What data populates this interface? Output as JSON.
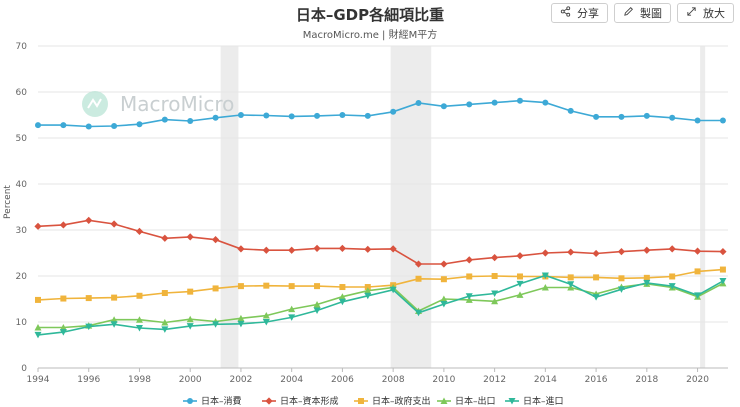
{
  "header": {
    "title": "日本–GDP各細項比重",
    "subtitle": "MacroMicro.me | 財經M平方"
  },
  "toolbar": {
    "share": {
      "label": "分享",
      "icon": "share-icon"
    },
    "draw": {
      "label": "製圖",
      "icon": "pencil-icon"
    },
    "zoom": {
      "label": "放大",
      "icon": "expand-icon"
    }
  },
  "watermark": {
    "text": "MacroMicro",
    "icon": "macromicro-logo-icon"
  },
  "chart_data": {
    "type": "line",
    "title": "日本–GDP各細項比重",
    "xlabel": "",
    "ylabel": "Percent",
    "ylim": [
      0,
      70
    ],
    "xlim": [
      1994,
      2021.2
    ],
    "yticks": [
      0,
      10,
      20,
      30,
      40,
      50,
      60,
      70
    ],
    "xticks": [
      1994,
      1996,
      1998,
      2000,
      2002,
      2004,
      2006,
      2008,
      2010,
      2012,
      2014,
      2016,
      2018,
      2020
    ],
    "grid": true,
    "legend": "bottom",
    "recession_bands": [
      [
        2001.2,
        2001.9
      ],
      [
        2007.9,
        2009.5
      ],
      [
        2020.1,
        2020.3
      ]
    ],
    "x": [
      1994,
      1995,
      1996,
      1997,
      1998,
      1999,
      2000,
      2001,
      2002,
      2003,
      2004,
      2005,
      2006,
      2007,
      2008,
      2009,
      2010,
      2011,
      2012,
      2013,
      2014,
      2015,
      2016,
      2017,
      2018,
      2019,
      2020,
      2021
    ],
    "series": [
      {
        "name": "日本–消費",
        "color": "#3da9d6",
        "marker": "circle",
        "values": [
          52.8,
          52.8,
          52.5,
          52.6,
          53.0,
          54.0,
          53.7,
          54.4,
          55.0,
          54.9,
          54.7,
          54.8,
          55.0,
          54.8,
          55.7,
          57.6,
          56.9,
          57.3,
          57.7,
          58.1,
          57.7,
          55.9,
          54.6,
          54.6,
          54.8,
          54.4,
          53.8,
          53.8
        ]
      },
      {
        "name": "日本–資本形成",
        "color": "#d9533f",
        "marker": "diamond",
        "values": [
          30.8,
          31.1,
          32.1,
          31.3,
          29.7,
          28.2,
          28.5,
          27.9,
          25.9,
          25.6,
          25.6,
          26.0,
          26.0,
          25.8,
          25.9,
          22.6,
          22.6,
          23.5,
          24.0,
          24.4,
          25.0,
          25.2,
          24.9,
          25.3,
          25.6,
          25.9,
          25.4,
          25.3
        ]
      },
      {
        "name": "日本–政府支出",
        "color": "#f0b43c",
        "marker": "square",
        "values": [
          14.8,
          15.1,
          15.2,
          15.3,
          15.7,
          16.3,
          16.6,
          17.3,
          17.8,
          17.9,
          17.8,
          17.8,
          17.6,
          17.6,
          18.0,
          19.4,
          19.3,
          19.9,
          20.0,
          19.9,
          19.9,
          19.7,
          19.7,
          19.5,
          19.6,
          19.9,
          21.0,
          21.4
        ]
      },
      {
        "name": "日本–出口",
        "color": "#7ec85a",
        "marker": "triangle-up",
        "values": [
          8.8,
          8.8,
          9.2,
          10.5,
          10.5,
          9.9,
          10.6,
          10.1,
          10.8,
          11.4,
          12.8,
          13.8,
          15.5,
          16.8,
          17.5,
          12.4,
          15.0,
          14.8,
          14.5,
          15.9,
          17.5,
          17.5,
          16.1,
          17.6,
          18.3,
          17.5,
          15.5,
          18.4
        ]
      },
      {
        "name": "日本–進口",
        "color": "#2fb89a",
        "marker": "triangle-down",
        "values": [
          7.2,
          7.8,
          9.0,
          9.5,
          8.7,
          8.4,
          9.1,
          9.5,
          9.6,
          10.0,
          11.0,
          12.5,
          14.4,
          15.7,
          17.0,
          12.0,
          13.9,
          15.6,
          16.2,
          18.3,
          20.1,
          18.2,
          15.4,
          17.1,
          18.5,
          17.8,
          15.8,
          18.9
        ]
      }
    ]
  }
}
